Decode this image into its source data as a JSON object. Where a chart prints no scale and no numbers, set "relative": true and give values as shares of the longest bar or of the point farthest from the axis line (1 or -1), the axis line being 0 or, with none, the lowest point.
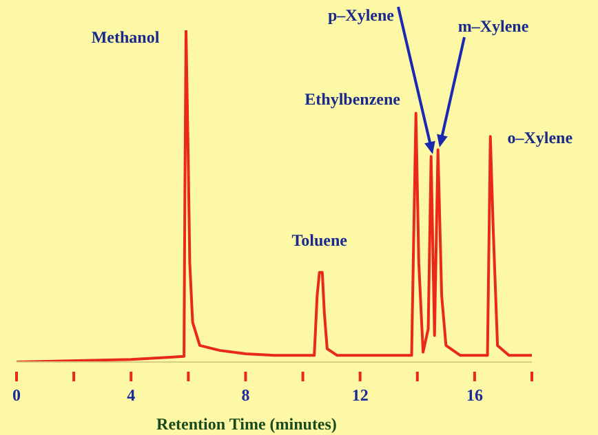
{
  "chart_data": {
    "type": "line",
    "relative": true,
    "xlabel": "Retention Time (minutes)",
    "xlim": [
      0,
      18
    ],
    "xticks": [
      0,
      {
        "value": 2,
        "label": null
      },
      4,
      {
        "value": 6,
        "label": null
      },
      8,
      {
        "value": 10,
        "label": null
      },
      12,
      {
        "value": 14,
        "label": null
      },
      16,
      {
        "value": 18,
        "label": null
      }
    ],
    "series": [
      {
        "color": "#e8291c",
        "x": [
          0,
          4,
          5.85,
          5.88,
          5.92,
          6.0,
          6.05,
          6.15,
          6.4,
          7.1,
          8,
          9,
          10.4,
          10.5,
          10.58,
          10.68,
          10.75,
          10.85,
          11.2,
          13.8,
          13.95,
          14.05,
          14.2,
          14.38,
          14.48,
          14.6,
          14.72,
          14.85,
          15.0,
          15.5,
          16.45,
          16.55,
          16.65,
          16.8,
          17.2,
          18
        ],
        "values": [
          0,
          0.008,
          0.017,
          0.5,
          1.0,
          0.6,
          0.3,
          0.12,
          0.05,
          0.035,
          0.025,
          0.02,
          0.02,
          0.2,
          0.27,
          0.27,
          0.15,
          0.04,
          0.02,
          0.02,
          0.75,
          0.3,
          0.03,
          0.1,
          0.62,
          0.08,
          0.64,
          0.2,
          0.05,
          0.02,
          0.02,
          0.68,
          0.4,
          0.05,
          0.02,
          0.02
        ]
      }
    ],
    "annotations": [
      {
        "text": "Methanol",
        "x": 5.92,
        "y": 1.0
      },
      {
        "text": "Toluene",
        "x": 10.63,
        "y": 0.27
      },
      {
        "text": "Ethylbenzene",
        "x": 13.95,
        "y": 0.75
      },
      "p–Xylene",
      "m–Xylene",
      {
        "text": "o–Xylene",
        "x": 16.55,
        "y": 0.68
      }
    ]
  }
}
